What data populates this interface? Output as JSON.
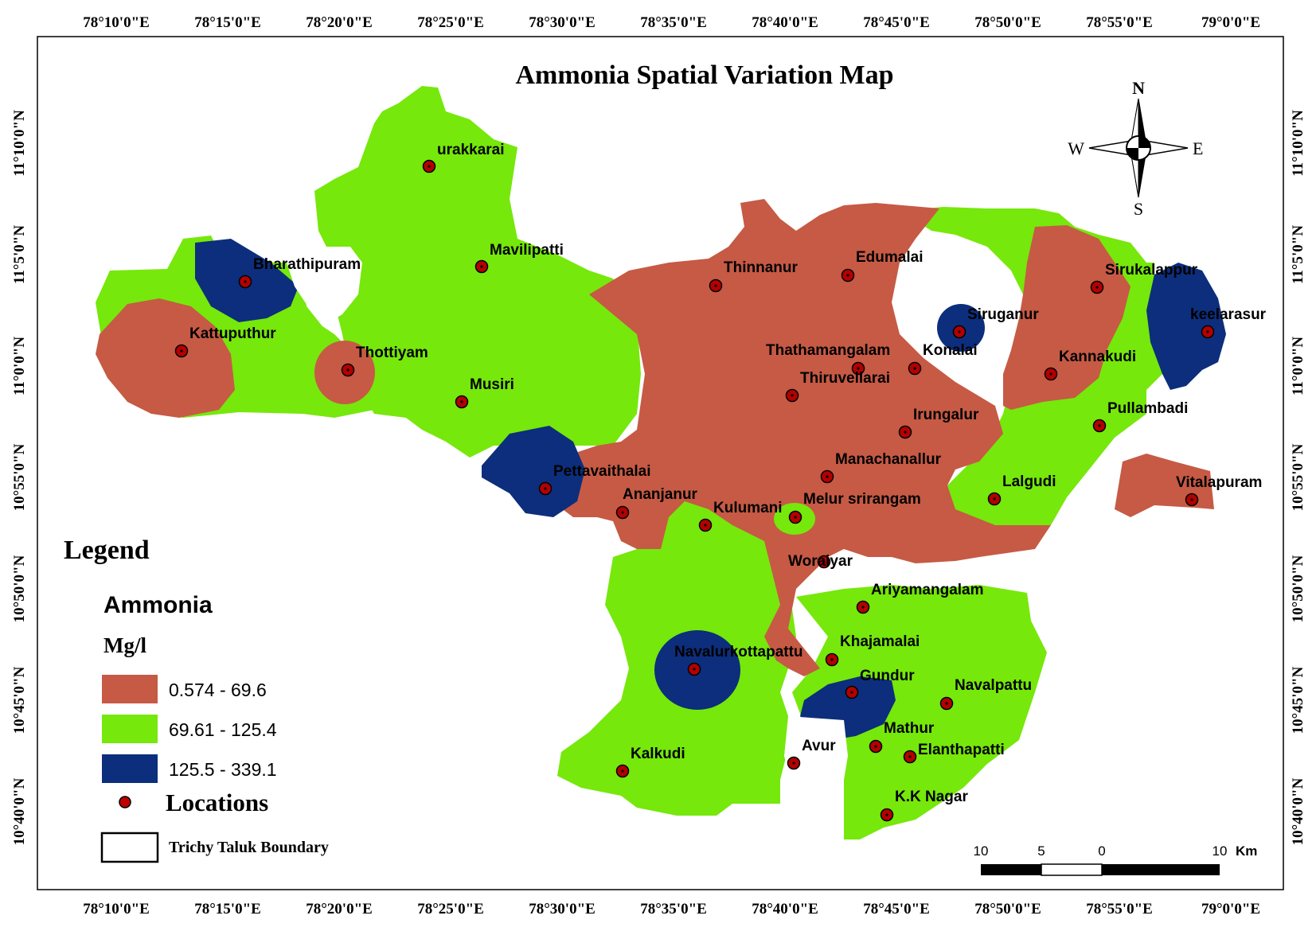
{
  "title": "Ammonia Spatial Variation Map",
  "lon_ticks": [
    "78°10'0\"E",
    "78°15'0\"E",
    "78°20'0\"E",
    "78°25'0\"E",
    "78°30'0\"E",
    "78°35'0\"E",
    "78°40'0\"E",
    "78°45'0\"E",
    "78°50'0\"E",
    "78°55'0\"E",
    "79°0'0\"E"
  ],
  "lat_ticks": [
    "11°10'0\"N",
    "11°5'0\"N",
    "11°0'0\"N",
    "10°55'0\"N",
    "10°50'0\"N",
    "10°45'0\"N",
    "10°40'0\"N"
  ],
  "compass": {
    "n": "N",
    "s": "S",
    "e": "E",
    "w": "W"
  },
  "legend": {
    "heading": "Legend",
    "parameter": "Ammonia",
    "unit": "Mg/l",
    "classes": [
      {
        "label": "0.574 - 69.6",
        "color": "#c65a45"
      },
      {
        "label": "69.61 - 125.4",
        "color": "#76e80b"
      },
      {
        "label": "125.5 - 339.1",
        "color": "#0c2e7c"
      }
    ],
    "locations_label": "Locations",
    "boundary_label": "Trichy Taluk Boundary"
  },
  "scale_bar": {
    "labels": [
      "10",
      "5",
      "0",
      "10"
    ],
    "unit": "Km"
  },
  "locations": [
    "urakkarai",
    "Mavilipatti",
    "Bharathipuram",
    "Kattuputhur",
    "Thottiyam",
    "Musiri",
    "Pettavaithalai",
    "Ananjanur",
    "Kulumani",
    "Thinnanur",
    "Edumalai",
    "Siruganur",
    "Sirukalappur",
    "keelarasur",
    "Thathamangalam",
    "Konalai",
    "Kannakudi",
    "Thiruvellarai",
    "Irungalur",
    "Pullambadi",
    "Manachanallur",
    "Lalgudi",
    "Vitalapuram",
    "Melur srirangam",
    "Woraiyar",
    "Ariyamangalam",
    "Khajamalai",
    "Navalurkottapattu",
    "Gundur",
    "Navalpattu",
    "Mathur",
    "Elanthapatti",
    "Kalkudi",
    "Avur",
    "K.K Nagar"
  ]
}
